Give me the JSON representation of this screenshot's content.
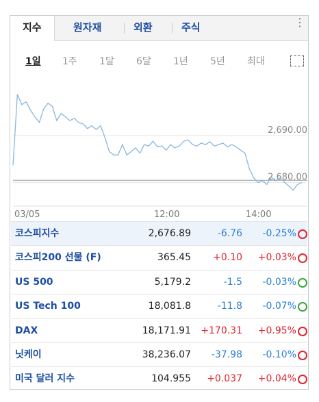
{
  "tabs": [
    "지수",
    "원자재",
    "외환",
    "주식"
  ],
  "active_tab": 0,
  "periods": [
    "1일",
    "1주",
    "1달",
    "6달",
    "1년",
    "5년",
    "최대"
  ],
  "active_period": 0,
  "chart_data": {
    "type": "line",
    "color": "#8ab6de",
    "values": [
      2683.7,
      2698.8,
      2696.6,
      2697.2,
      2695.4,
      2694.0,
      2692.8,
      2695.7,
      2696.9,
      2696.2,
      2693.2,
      2694.7,
      2694.0,
      2693.2,
      2693.7,
      2692.8,
      2692.5,
      2691.5,
      2692.1,
      2691.3,
      2692.1,
      2689.6,
      2686.6,
      2685.9,
      2685.9,
      2688.1,
      2685.9,
      2686.6,
      2687.4,
      2686.3,
      2688.1,
      2687.8,
      2688.8,
      2687.6,
      2687.8,
      2686.9,
      2688.1,
      2687.4,
      2687.8,
      2688.8,
      2689.1,
      2688.1,
      2687.8,
      2688.4,
      2688.1,
      2688.7,
      2687.8,
      2688.1,
      2688.4,
      2687.6,
      2688.1,
      2687.6,
      2686.9,
      2686.3,
      2682.9,
      2681.0,
      2680.0,
      2680.4,
      2679.6,
      2681.2,
      2680.4,
      2681.0,
      2680.1,
      2679.3,
      2678.4,
      2679.6,
      2680.0
    ],
    "reference": 2680.5,
    "ylim": [
      2675,
      2700.5
    ],
    "yticks": [
      {
        "value": 2680,
        "label": "2,680.00"
      },
      {
        "value": 2690,
        "label": "2,690.00"
      }
    ],
    "x_labels": [
      "03/05",
      "12:00",
      "14:00"
    ]
  },
  "table": {
    "rows": [
      {
        "name": "코스피지수",
        "price": "2,676.89",
        "change": "-6.76",
        "percent": "-0.25%",
        "icon_color": "#e0242e"
      },
      {
        "name": "코스피200 선물 (F)",
        "price": "365.45",
        "change": "+0.10",
        "percent": "+0.03%",
        "icon_color": "#e0242e"
      },
      {
        "name": "US 500",
        "price": "5,179.2",
        "change": "-1.5",
        "percent": "-0.03%",
        "icon_color": "#3aa53a"
      },
      {
        "name": "US Tech 100",
        "price": "18,081.8",
        "change": "-11.8",
        "percent": "-0.07%",
        "icon_color": "#3aa53a"
      },
      {
        "name": "DAX",
        "price": "18,171.91",
        "change": "+170.31",
        "percent": "+0.95%",
        "icon_color": "#e0242e"
      },
      {
        "name": "닛케이",
        "price": "38,236.07",
        "change": "-37.98",
        "percent": "-0.10%",
        "icon_color": "#e0242e"
      },
      {
        "name": "미국 달러 지수",
        "price": "104.955",
        "change": "+0.037",
        "percent": "+0.04%",
        "icon_color": "#e0242e"
      }
    ]
  }
}
